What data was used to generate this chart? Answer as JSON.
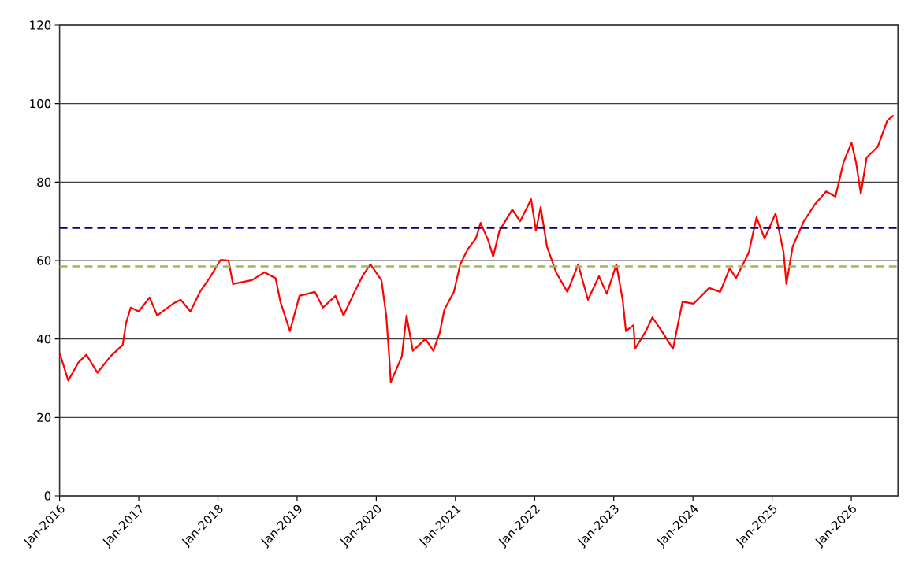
{
  "chart_data": {
    "type": "line",
    "x": [
      "2016-01-01",
      "2016-02-10",
      "2016-03-28",
      "2016-05-04",
      "2016-06-24",
      "2016-08-22",
      "2016-10-19",
      "2016-11-03",
      "2016-11-25",
      "2017-01-01",
      "2017-02-20",
      "2017-03-27",
      "2017-06-08",
      "2017-07-14",
      "2017-08-27",
      "2017-10-10",
      "2017-11-23",
      "2018-01-14",
      "2018-02-19",
      "2018-03-11",
      "2018-06-07",
      "2018-08-04",
      "2018-09-24",
      "2018-10-16",
      "2018-11-29",
      "2019-01-12",
      "2019-03-24",
      "2019-04-30",
      "2019-06-27",
      "2019-08-03",
      "2019-09-23",
      "2019-10-29",
      "2019-12-05",
      "2020-01-25",
      "2020-02-16",
      "2020-03-01",
      "2020-03-08",
      "2020-04-28",
      "2020-05-20",
      "2020-06-18",
      "2020-08-15",
      "2020-09-21",
      "2020-10-20",
      "2020-11-11",
      "2020-12-25",
      "2021-01-23",
      "2021-02-28",
      "2021-04-05",
      "2021-04-27",
      "2021-06-02",
      "2021-06-24",
      "2021-07-23",
      "2021-09-20",
      "2021-10-26",
      "2021-12-16",
      "2022-01-07",
      "2022-01-29",
      "2022-02-27",
      "2022-04-10",
      "2022-06-01",
      "2022-07-21",
      "2022-09-04",
      "2022-10-25",
      "2022-11-30",
      "2023-01-13",
      "2023-02-11",
      "2023-02-26",
      "2023-04-02",
      "2023-04-09",
      "2023-05-29",
      "2023-06-28",
      "2023-08-10",
      "2023-10-01",
      "2023-11-14",
      "2024-01-04",
      "2024-03-16",
      "2024-05-06",
      "2024-06-19",
      "2024-07-18",
      "2024-09-15",
      "2024-10-21",
      "2024-11-27",
      "2025-01-17",
      "2025-02-23",
      "2025-03-08",
      "2025-04-06",
      "2025-05-27",
      "2025-07-17",
      "2025-09-07",
      "2025-10-20",
      "2025-11-26",
      "2026-01-02",
      "2026-01-23",
      "2026-02-14",
      "2026-03-13",
      "2026-05-03",
      "2026-06-16",
      "2026-07-15"
    ],
    "series": [
      {
        "color": "#ff0000",
        "values": [
          36.5,
          29.4,
          34,
          36,
          31.4,
          35.5,
          38.5,
          44,
          48,
          47,
          50.6,
          46,
          49,
          50,
          47,
          52,
          55.5,
          60.2,
          60,
          54,
          55,
          57,
          55.5,
          49.5,
          42,
          51,
          52,
          48,
          51,
          46,
          52,
          56,
          59,
          55,
          46,
          35.5,
          29,
          35.5,
          46,
          37,
          40,
          37,
          41.5,
          47.5,
          52,
          59,
          63,
          65.6,
          69.6,
          65,
          61,
          67.6,
          73,
          70,
          75.6,
          67.6,
          73.6,
          63.6,
          57,
          52,
          59,
          50,
          56,
          51.5,
          59,
          50,
          42,
          43.5,
          37.5,
          42,
          45.5,
          42,
          37.5,
          49.5,
          49,
          53,
          52,
          58,
          55.5,
          62,
          71,
          65.6,
          72,
          62,
          54,
          63.6,
          70,
          74.3,
          77.6,
          76.3,
          85,
          90,
          85,
          77,
          86.3,
          89,
          95.7,
          97
        ]
      }
    ],
    "xlim": [
      "2016-01-01",
      "2026-08-04"
    ],
    "xticks": [
      {
        "value": "2016-01-01",
        "label": "Jan-2016"
      },
      {
        "value": "2017-01-01",
        "label": "Jan-2017"
      },
      {
        "value": "2018-01-01",
        "label": "Jan-2018"
      },
      {
        "value": "2019-01-01",
        "label": "Jan-2019"
      },
      {
        "value": "2020-01-01",
        "label": "Jan-2020"
      },
      {
        "value": "2021-01-01",
        "label": "Jan-2021"
      },
      {
        "value": "2022-01-01",
        "label": "Jan-2022"
      },
      {
        "value": "2023-01-01",
        "label": "Jan-2023"
      },
      {
        "value": "2024-01-01",
        "label": "Jan-2024"
      },
      {
        "value": "2025-01-01",
        "label": "Jan-2025"
      },
      {
        "value": "2026-01-01",
        "label": "Jan-2026"
      }
    ],
    "ylim": [
      0,
      120
    ],
    "yticks": [
      0,
      20,
      40,
      60,
      80,
      100,
      120
    ],
    "grid": "y",
    "ref_lines": [
      {
        "axis": "y",
        "value": 68.3,
        "color": "#000080",
        "line_style": "dashed"
      },
      {
        "axis": "y",
        "value": 58.5,
        "color": "#9bbb59",
        "line_style": "dashed"
      }
    ]
  }
}
